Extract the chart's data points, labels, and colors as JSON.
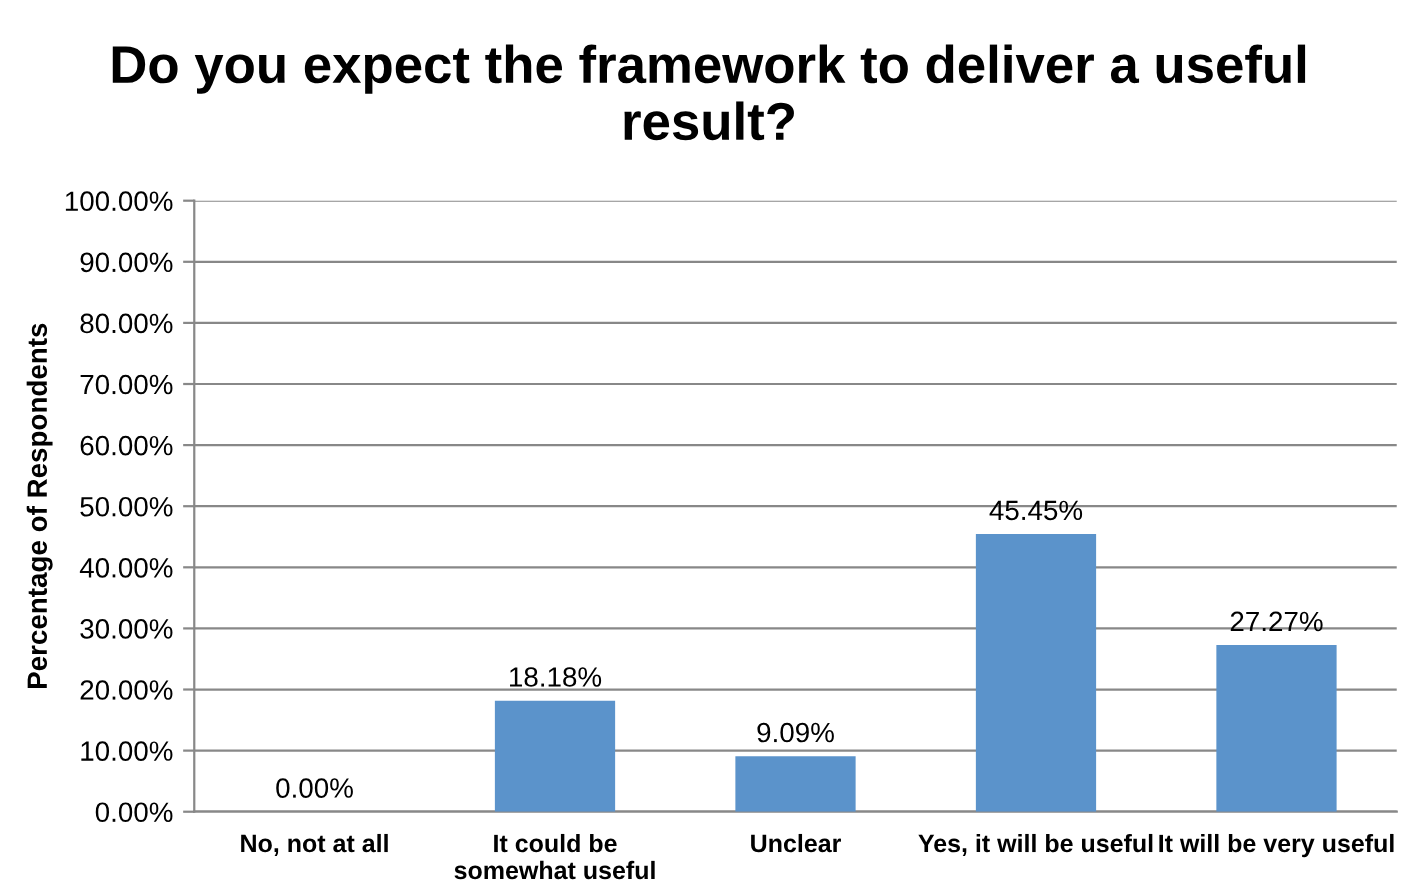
{
  "chart_data": {
    "type": "bar",
    "title": "Do you expect the framework to deliver a useful\nresult?",
    "ylabel": "Percentage of Respondents",
    "categories": [
      "No, not at all",
      "It could be\nsomewhat useful",
      "Unclear",
      "Yes, it will be useful",
      "It will be very useful"
    ],
    "values": [
      0,
      18.18,
      9.09,
      45.45,
      27.27
    ],
    "value_labels": [
      "0.00%",
      "18.18%",
      "9.09%",
      "45.45%",
      "27.27%"
    ],
    "color": "#5b93cb",
    "ylim": [
      0,
      100
    ],
    "yticks": [
      {
        "value": 0,
        "label": "0.00%"
      },
      {
        "value": 10,
        "label": "10.00%"
      },
      {
        "value": 20,
        "label": "20.00%"
      },
      {
        "value": 30,
        "label": "30.00%"
      },
      {
        "value": 40,
        "label": "40.00%"
      },
      {
        "value": 50,
        "label": "50.00%"
      },
      {
        "value": 60,
        "label": "60.00%"
      },
      {
        "value": 70,
        "label": "70.00%"
      },
      {
        "value": 80,
        "label": "80.00%"
      },
      {
        "value": 90,
        "label": "90.00%"
      },
      {
        "value": 100,
        "label": "100.00%"
      }
    ],
    "grid": "y",
    "legend": false
  }
}
